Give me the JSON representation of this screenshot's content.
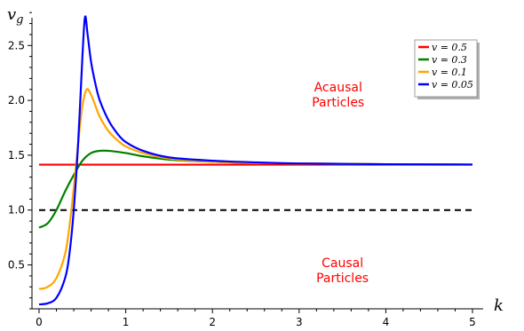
{
  "chart_data": {
    "type": "line",
    "title": "",
    "xlabel": "k",
    "ylabel": "v_g",
    "ylabel_main": "v",
    "ylabel_sub": "g",
    "xlim": [
      0,
      5
    ],
    "ylim": [
      0.1,
      2.85
    ],
    "xticks": [
      0,
      1,
      2,
      3,
      4,
      5
    ],
    "xtick_labels": [
      "0",
      "1",
      "2",
      "3",
      "4",
      "5"
    ],
    "yticks": [
      0.5,
      1.0,
      1.5,
      2.0,
      2.5
    ],
    "ytick_labels": [
      "0.5",
      "1.0",
      "1.5",
      "2.0",
      "2.5"
    ],
    "grid": false,
    "legend_position": "top-right",
    "series": [
      {
        "name": "v = 0.5",
        "color": "#ff0000",
        "x": [
          0,
          0.5,
          1,
          1.5,
          2,
          2.5,
          3,
          3.5,
          4,
          4.5,
          5
        ],
        "y": [
          1.414,
          1.414,
          1.414,
          1.414,
          1.414,
          1.414,
          1.414,
          1.414,
          1.414,
          1.414,
          1.414
        ]
      },
      {
        "name": "v = 0.3",
        "color": "#008000",
        "x": [
          0,
          0.1,
          0.2,
          0.3,
          0.4,
          0.5,
          0.6,
          0.7,
          0.8,
          1.0,
          1.2,
          1.5,
          2.0,
          2.5,
          3.0,
          4.0,
          5.0
        ],
        "y": [
          0.84,
          0.88,
          1.0,
          1.17,
          1.32,
          1.45,
          1.52,
          1.54,
          1.54,
          1.52,
          1.49,
          1.46,
          1.44,
          1.43,
          1.425,
          1.418,
          1.415
        ]
      },
      {
        "name": "v = 0.1",
        "color": "#ffa500",
        "x": [
          0,
          0.1,
          0.2,
          0.3,
          0.35,
          0.4,
          0.45,
          0.5,
          0.55,
          0.6,
          0.65,
          0.7,
          0.8,
          0.9,
          1.0,
          1.2,
          1.5,
          2.0,
          2.5,
          3.0,
          4.0,
          5.0
        ],
        "y": [
          0.28,
          0.3,
          0.38,
          0.6,
          0.85,
          1.2,
          1.6,
          1.95,
          2.1,
          2.05,
          1.95,
          1.85,
          1.72,
          1.64,
          1.58,
          1.52,
          1.47,
          1.44,
          1.43,
          1.425,
          1.418,
          1.415
        ]
      },
      {
        "name": "v = 0.05",
        "color": "#0000ff",
        "x": [
          0,
          0.1,
          0.2,
          0.3,
          0.35,
          0.4,
          0.45,
          0.5,
          0.53,
          0.56,
          0.6,
          0.65,
          0.7,
          0.8,
          0.9,
          1.0,
          1.2,
          1.5,
          2.0,
          2.5,
          3.0,
          4.0,
          5.0
        ],
        "y": [
          0.14,
          0.15,
          0.2,
          0.38,
          0.6,
          1.0,
          1.6,
          2.4,
          2.76,
          2.6,
          2.35,
          2.15,
          2.0,
          1.82,
          1.7,
          1.62,
          1.54,
          1.48,
          1.45,
          1.435,
          1.425,
          1.418,
          1.415
        ]
      },
      {
        "name": "",
        "color": "#000000",
        "dashed": true,
        "x": [
          0,
          5
        ],
        "y": [
          1.0,
          1.0
        ]
      }
    ],
    "annotations": [
      {
        "lines": [
          "Acausal",
          "Particles"
        ],
        "x": 3.45,
        "y": 2.0,
        "color": "#ff0000"
      },
      {
        "lines": [
          "Causal",
          "Particles"
        ],
        "x": 3.5,
        "y": 0.4,
        "color": "#ff0000"
      }
    ]
  }
}
